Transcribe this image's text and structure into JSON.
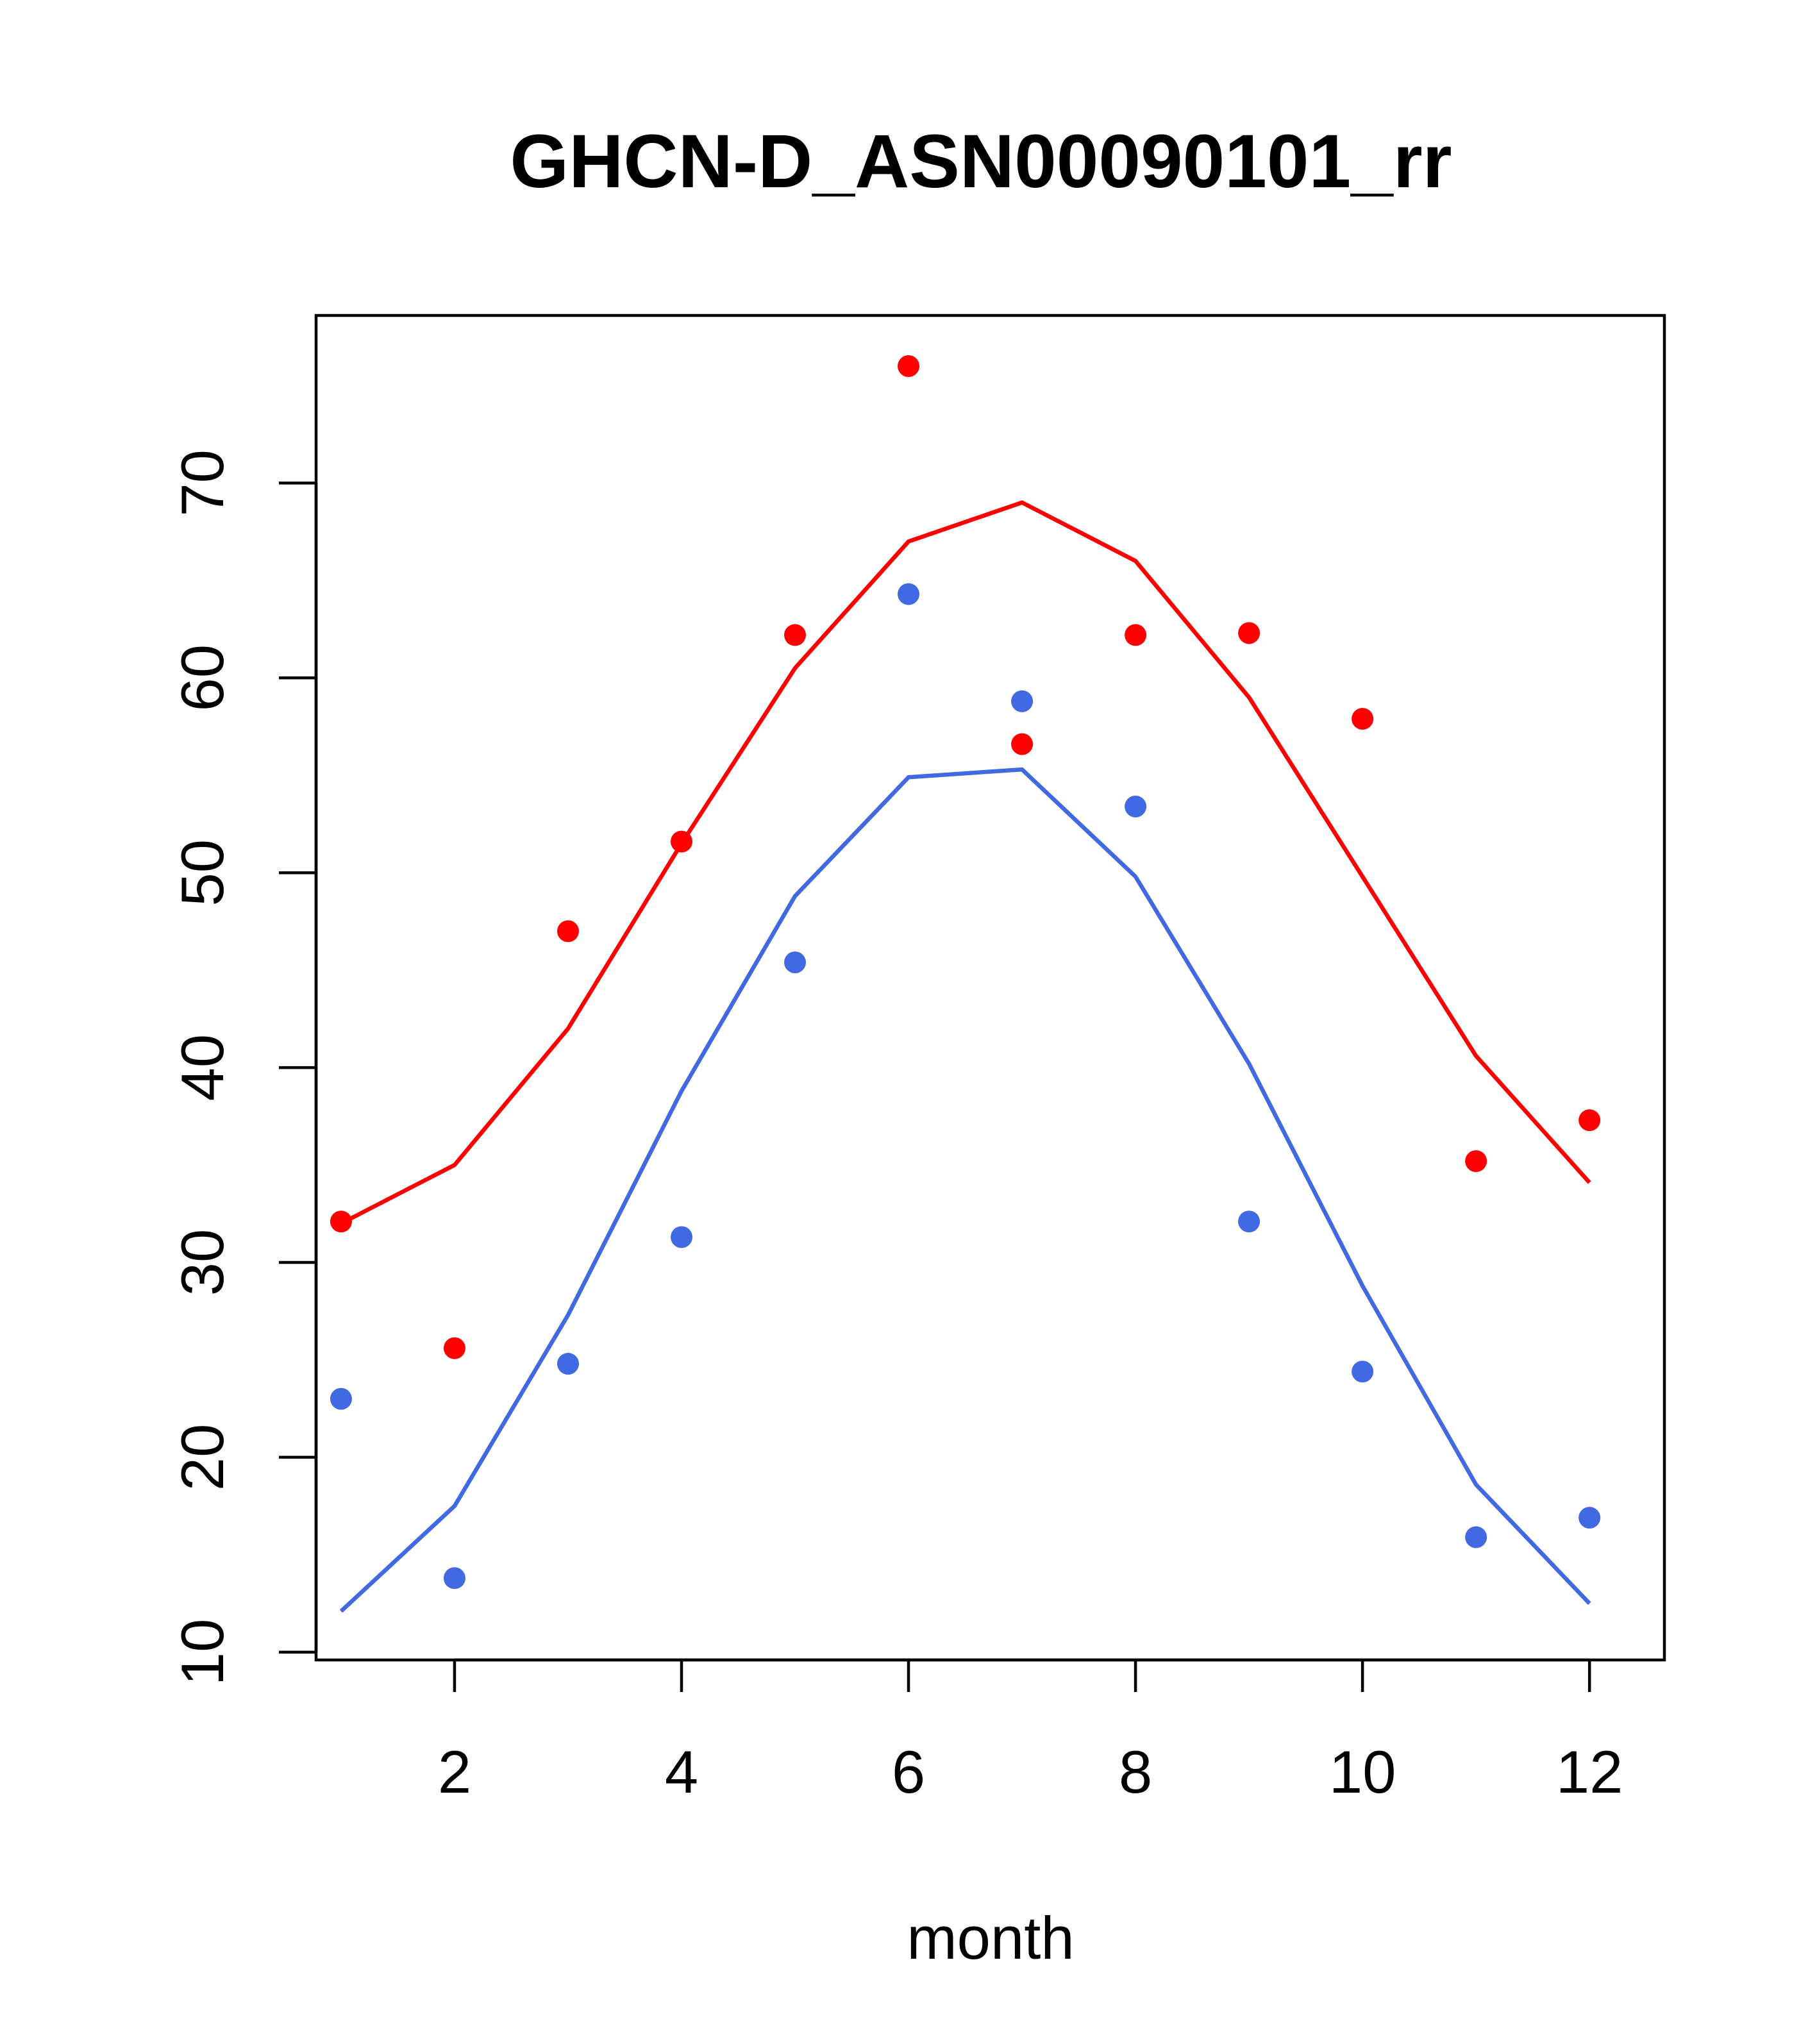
{
  "chart_data": {
    "type": "line",
    "title": "GHCN-D_ASN00090101_rr",
    "xlabel": "month",
    "ylabel": "",
    "xlim": [
      0.78,
      12.66
    ],
    "ylim": [
      9.6,
      78.6
    ],
    "xticks": [
      2,
      4,
      6,
      8,
      10,
      12
    ],
    "yticks": [
      10,
      20,
      30,
      40,
      50,
      60,
      70
    ],
    "x": [
      1,
      2,
      3,
      4,
      5,
      6,
      7,
      8,
      9,
      10,
      11,
      12
    ],
    "series": [
      {
        "name": "red fitted line",
        "kind": "line",
        "color": "#ff0000",
        "values": [
          32.0,
          35.0,
          42.0,
          51.5,
          60.5,
          67.0,
          69.0,
          66.0,
          59.0,
          49.8,
          40.6,
          34.1
        ]
      },
      {
        "name": "red observed points",
        "kind": "points",
        "color": "#ff0000",
        "values": [
          32.1,
          25.6,
          47.0,
          51.6,
          62.2,
          76.0,
          56.6,
          62.2,
          62.3,
          57.9,
          35.2,
          37.3
        ]
      },
      {
        "name": "blue fitted line",
        "kind": "line",
        "color": "#4169e1",
        "values": [
          12.1,
          17.5,
          27.3,
          38.8,
          48.8,
          54.9,
          55.3,
          49.8,
          40.2,
          28.8,
          18.6,
          12.5
        ]
      },
      {
        "name": "blue observed points",
        "kind": "points",
        "color": "#4169e1",
        "values": [
          23.0,
          13.8,
          24.8,
          31.3,
          45.4,
          64.3,
          58.8,
          53.4,
          32.1,
          24.4,
          15.9,
          16.9
        ]
      }
    ]
  }
}
